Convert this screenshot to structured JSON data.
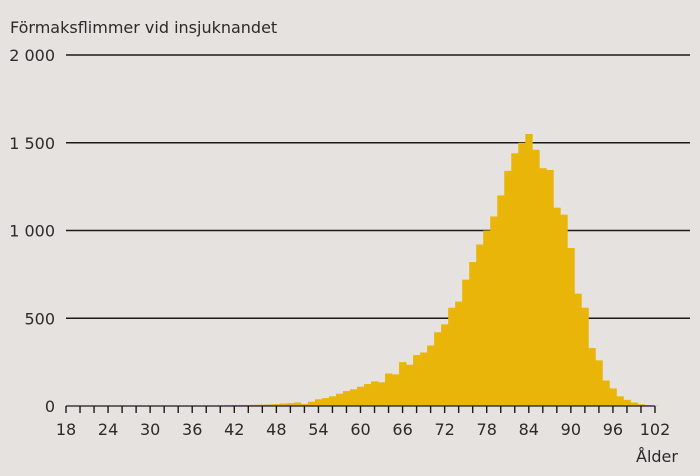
{
  "chart_data": {
    "type": "bar",
    "title": "Förmaksflimmer vid insjuknandet",
    "xlabel": "Ålder",
    "ylabel": "",
    "ylim": [
      0,
      2000
    ],
    "yticks": [
      0,
      500,
      1000,
      1500,
      2000
    ],
    "ytick_labels": [
      "0",
      "500",
      "1 000",
      "1 500",
      "2 000"
    ],
    "xlim": [
      18,
      104
    ],
    "xticks": [
      18,
      24,
      30,
      36,
      42,
      48,
      54,
      60,
      66,
      72,
      78,
      84,
      90,
      96,
      102
    ],
    "xtick_labels": [
      "18",
      "24",
      "30",
      "36",
      "42",
      "48",
      "54",
      "60",
      "66",
      "72",
      "78",
      "84",
      "90",
      "96",
      "102"
    ],
    "grid": true,
    "bar_color": "#e8b508",
    "grid_color": "#1a1a1a",
    "categories": [
      40,
      41,
      42,
      43,
      44,
      45,
      46,
      47,
      48,
      49,
      50,
      51,
      52,
      53,
      54,
      55,
      56,
      57,
      58,
      59,
      60,
      61,
      62,
      63,
      64,
      65,
      66,
      67,
      68,
      69,
      70,
      71,
      72,
      73,
      74,
      75,
      76,
      77,
      78,
      79,
      80,
      81,
      82,
      83,
      84,
      85,
      86,
      87,
      88,
      89,
      90,
      91,
      92,
      93,
      94,
      95,
      96,
      97,
      98,
      99,
      100,
      101,
      102
    ],
    "values": [
      3,
      4,
      5,
      5,
      6,
      7,
      8,
      9,
      11,
      14,
      16,
      20,
      12,
      24,
      38,
      45,
      55,
      70,
      85,
      95,
      110,
      125,
      140,
      135,
      185,
      180,
      250,
      235,
      290,
      305,
      345,
      420,
      465,
      560,
      595,
      720,
      820,
      920,
      1000,
      1080,
      1200,
      1340,
      1440,
      1500,
      1550,
      1460,
      1355,
      1345,
      1130,
      1090,
      900,
      640,
      560,
      330,
      260,
      145,
      100,
      55,
      35,
      20,
      10,
      5,
      2
    ]
  }
}
